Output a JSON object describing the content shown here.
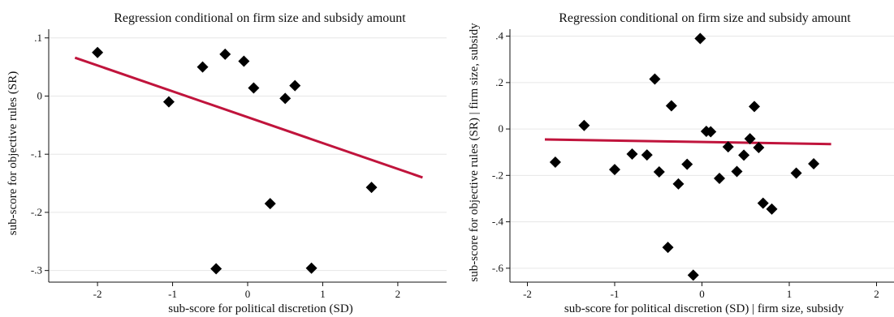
{
  "colors": {
    "fit_line": "#c0143c",
    "marker": "#000000",
    "grid": "#e6e6e6",
    "background": "#ffffff"
  },
  "chart_data": [
    {
      "type": "scatter",
      "title": "Regression conditional on firm size and subsidy amount",
      "xlabel": "sub-score for political discretion (SD)",
      "ylabel": "sub-score for objective rules (SR)",
      "xlim": [
        -2.65,
        2.65
      ],
      "ylim": [
        -0.32,
        0.115
      ],
      "xticks": [
        -2,
        -1,
        0,
        1,
        2
      ],
      "xtick_labels": [
        "-2",
        "-1",
        "0",
        "1",
        "2"
      ],
      "yticks": [
        0.1,
        0,
        -0.1,
        -0.2,
        -0.3
      ],
      "ytick_labels": [
        ".1",
        "0",
        "-.1",
        "-.2",
        "-.3"
      ],
      "grid": true,
      "marker": "diamond",
      "points": [
        {
          "x": -2.0,
          "y": 0.075
        },
        {
          "x": -1.05,
          "y": -0.01
        },
        {
          "x": -0.6,
          "y": 0.05
        },
        {
          "x": -0.3,
          "y": 0.072
        },
        {
          "x": -0.05,
          "y": 0.06
        },
        {
          "x": 0.08,
          "y": 0.014
        },
        {
          "x": 0.5,
          "y": -0.004
        },
        {
          "x": 0.63,
          "y": 0.018
        },
        {
          "x": 0.3,
          "y": -0.185
        },
        {
          "x": 1.65,
          "y": -0.157
        },
        {
          "x": -0.42,
          "y": -0.297
        },
        {
          "x": 0.85,
          "y": -0.296
        }
      ],
      "fit_line": {
        "x": [
          -2.3,
          2.33
        ],
        "y": [
          0.066,
          -0.14
        ]
      }
    },
    {
      "type": "scatter",
      "title": "Regression conditional on firm size and subsidy amount",
      "xlabel": "sub-score for political discretion (SD)  |  firm size, subsidy",
      "ylabel": "sub-score for objective rules (SR)  |  firm size, subsidy",
      "xlim": [
        -2.2,
        2.2
      ],
      "ylim": [
        -0.66,
        0.43
      ],
      "xticks": [
        -2,
        -1,
        0,
        1,
        2
      ],
      "xtick_labels": [
        "-2",
        "-1",
        "0",
        "1",
        "2"
      ],
      "yticks": [
        0.4,
        0.2,
        0,
        -0.2,
        -0.4,
        -0.6
      ],
      "ytick_labels": [
        ".4",
        ".2",
        "0",
        "-.2",
        "-.4",
        "-.6"
      ],
      "grid": true,
      "marker": "diamond",
      "points": [
        {
          "x": -1.68,
          "y": -0.143
        },
        {
          "x": -1.35,
          "y": 0.015
        },
        {
          "x": -1.0,
          "y": -0.175
        },
        {
          "x": -0.8,
          "y": -0.108
        },
        {
          "x": -0.63,
          "y": -0.112
        },
        {
          "x": -0.54,
          "y": 0.215
        },
        {
          "x": -0.49,
          "y": -0.185
        },
        {
          "x": -0.35,
          "y": 0.1
        },
        {
          "x": -0.39,
          "y": -0.51
        },
        {
          "x": -0.27,
          "y": -0.237
        },
        {
          "x": -0.17,
          "y": -0.152
        },
        {
          "x": -0.1,
          "y": -0.63
        },
        {
          "x": -0.02,
          "y": 0.39
        },
        {
          "x": 0.05,
          "y": -0.01
        },
        {
          "x": 0.1,
          "y": -0.012
        },
        {
          "x": 0.2,
          "y": -0.213
        },
        {
          "x": 0.3,
          "y": -0.077
        },
        {
          "x": 0.4,
          "y": -0.183
        },
        {
          "x": 0.48,
          "y": -0.113
        },
        {
          "x": 0.55,
          "y": -0.042
        },
        {
          "x": 0.6,
          "y": 0.097
        },
        {
          "x": 0.65,
          "y": -0.08
        },
        {
          "x": 0.7,
          "y": -0.32
        },
        {
          "x": 0.8,
          "y": -0.345
        },
        {
          "x": 1.08,
          "y": -0.19
        },
        {
          "x": 1.28,
          "y": -0.15
        }
      ],
      "fit_line": {
        "x": [
          -1.8,
          1.48
        ],
        "y": [
          -0.045,
          -0.065
        ]
      }
    }
  ]
}
